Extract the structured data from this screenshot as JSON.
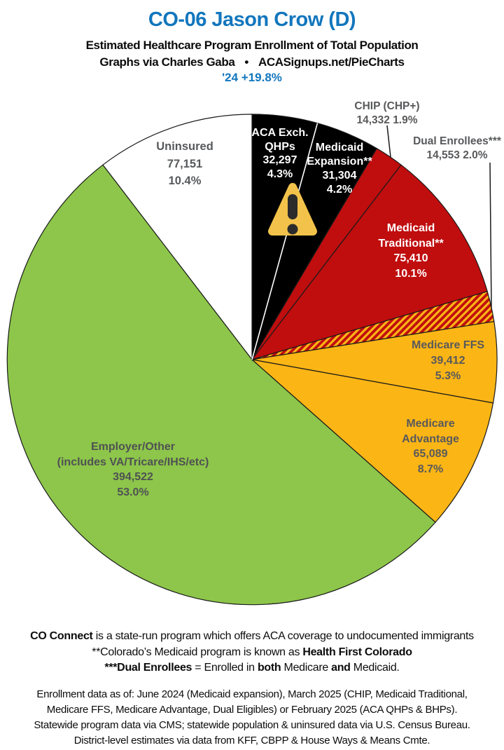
{
  "header": {
    "title": "CO-06 Jason Crow (D)",
    "subtitle": "Estimated Healthcare Program Enrollment of Total Population",
    "credit_left": "Graphs via Charles Gaba",
    "bullet": "•",
    "credit_right": "ACASignups.net/PieCharts",
    "swing": "'24 +19.8%",
    "accent_blue": "#1276BD"
  },
  "chart_data": {
    "type": "pie",
    "title": "CO-06 Jason Crow (D) — Estimated Healthcare Program Enrollment of Total Population",
    "legend_position": "labels-on-and-around-slices",
    "total": 744070,
    "start_angle_deg_clockwise_from_12": 0,
    "slices": [
      {
        "id": "aca_qhps",
        "name": "ACA Exch.\nQHPs",
        "value": 32297,
        "value_label": "32,297",
        "pct": 4.3,
        "pct_label": "4.3%",
        "color": "#000000",
        "text_color": "#ffffff"
      },
      {
        "id": "medicaid_expansion",
        "name": "Medicaid\nExpansion**",
        "value": 31304,
        "value_label": "31,304",
        "pct": 4.2,
        "pct_label": "4.2%",
        "color": "#000000",
        "text_color": "#ffffff"
      },
      {
        "id": "chip",
        "name": "CHIP (CHP+)",
        "value": 14332,
        "value_label": "14,332",
        "pct": 1.9,
        "pct_label": "1.9%",
        "color": "#C00D0E",
        "text_color": "#58595B"
      },
      {
        "id": "medicaid_traditional",
        "name": "Medicaid\nTraditional**",
        "value": 75410,
        "value_label": "75,410",
        "pct": 10.1,
        "pct_label": "10.1%",
        "color": "#C00D0E",
        "text_color": "#ffffff"
      },
      {
        "id": "dual_enrollees",
        "name": "Dual Enrollees***",
        "value": 14553,
        "value_label": "14,553",
        "pct": 2.0,
        "pct_label": "2.0%",
        "color": "#C00D0E",
        "pattern": "red-gold-hatch",
        "text_color": "#58595B"
      },
      {
        "id": "medicare_ffs",
        "name": "Medicare FFS",
        "value": 39412,
        "value_label": "39,412",
        "pct": 5.3,
        "pct_label": "5.3%",
        "color": "#FBB515",
        "text_color": "#58595B"
      },
      {
        "id": "medicare_advantage",
        "name": "Medicare\nAdvantage",
        "value": 65089,
        "value_label": "65,089",
        "pct": 8.7,
        "pct_label": "8.7%",
        "color": "#FBB515",
        "text_color": "#58595B"
      },
      {
        "id": "employer_other",
        "name": "Employer/Other\n(includes VA/Tricare/IHS/etc)",
        "value": 394522,
        "value_label": "394,522",
        "pct": 53.0,
        "pct_label": "53.0%",
        "color": "#8DC64A",
        "text_color": "#4F5153"
      },
      {
        "id": "uninsured",
        "name": "Uninsured",
        "value": 77151,
        "value_label": "77,151",
        "pct": 10.4,
        "pct_label": "10.4%",
        "color": "#FFFFFF",
        "text_color": "#58595B"
      }
    ],
    "pattern_colors": {
      "hatch_base": "#C00D0E",
      "hatch_stripe": "#FBB515"
    },
    "warning_icon": "yellow-triangle-exclamation"
  },
  "footnotes": {
    "block1": [
      [
        {
          "t": "CO Connect",
          "b": 1
        },
        {
          "t": " is a state-run program which offers ACA coverage to undocumented immigrants",
          "b": 0
        }
      ],
      [
        {
          "t": "**Colorado’s Medicaid program is known as ",
          "b": 0
        },
        {
          "t": "Health First Colorado",
          "b": 1
        }
      ],
      [
        {
          "t": "***Dual Enrollees",
          "b": 1
        },
        {
          "t": " = Enrolled in ",
          "b": 0
        },
        {
          "t": "both",
          "b": 1
        },
        {
          "t": " Medicare ",
          "b": 0
        },
        {
          "t": "and",
          "b": 1
        },
        {
          "t": " Medicaid.",
          "b": 0
        }
      ]
    ],
    "block2": [
      "Enrollment data as of: June 2024 (Medicaid expansion), March 2025 (CHIP, Medicaid Traditional,",
      "Medicare FFS, Medicare Advantage, Dual Eligibles) or February 2025 (ACA QHPs & BHPs).",
      "Statewide program data via CMS; statewide population & uninsured data via U.S. Census Bureau.",
      "District-level estimates via data from KFF, CBPP & House Ways & Means Cmte."
    ]
  }
}
